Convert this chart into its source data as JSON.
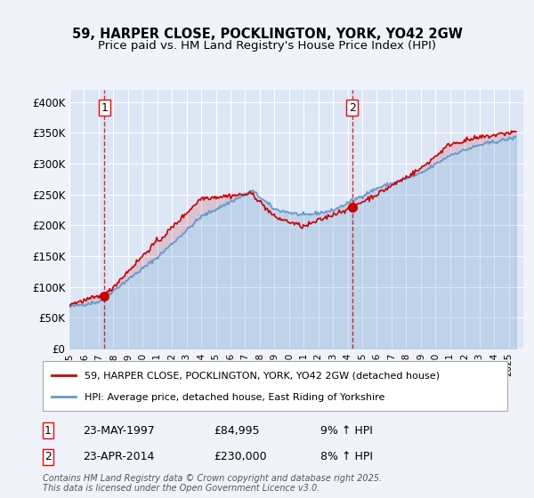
{
  "title_line1": "59, HARPER CLOSE, POCKLINGTON, YORK, YO42 2GW",
  "title_line2": "Price paid vs. HM Land Registry's House Price Index (HPI)",
  "background_color": "#f0f4fa",
  "plot_bg_color": "#dce6f5",
  "grid_color": "#ffffff",
  "ylabel_ticks": [
    "£0",
    "£50K",
    "£100K",
    "£150K",
    "£200K",
    "£250K",
    "£300K",
    "£350K",
    "£400K"
  ],
  "ytick_values": [
    0,
    50000,
    100000,
    150000,
    200000,
    250000,
    300000,
    350000,
    400000
  ],
  "ylim": [
    0,
    420000
  ],
  "xlim_start": 1995.0,
  "xlim_end": 2026.0,
  "xtick_years": [
    1995,
    1996,
    1997,
    1998,
    1999,
    2000,
    2001,
    2002,
    2003,
    2004,
    2005,
    2006,
    2007,
    2008,
    2009,
    2010,
    2011,
    2012,
    2013,
    2014,
    2015,
    2016,
    2017,
    2018,
    2019,
    2020,
    2021,
    2022,
    2023,
    2024,
    2025
  ],
  "sale1_x": 1997.39,
  "sale1_y": 84995,
  "sale1_label": "1",
  "sale2_x": 2014.31,
  "sale2_y": 230000,
  "sale2_label": "2",
  "red_line_color": "#cc0000",
  "blue_line_color": "#6699cc",
  "marker_color": "#cc0000",
  "dashed_line_color": "#cc0000",
  "legend_label_red": "59, HARPER CLOSE, POCKLINGTON, YORK, YO42 2GW (detached house)",
  "legend_label_blue": "HPI: Average price, detached house, East Riding of Yorkshire",
  "annotation1_date": "23-MAY-1997",
  "annotation1_price": "£84,995",
  "annotation1_hpi": "9% ↑ HPI",
  "annotation2_date": "23-APR-2014",
  "annotation2_price": "£230,000",
  "annotation2_hpi": "8% ↑ HPI",
  "footer": "Contains HM Land Registry data © Crown copyright and database right 2025.\nThis data is licensed under the Open Government Licence v3.0."
}
